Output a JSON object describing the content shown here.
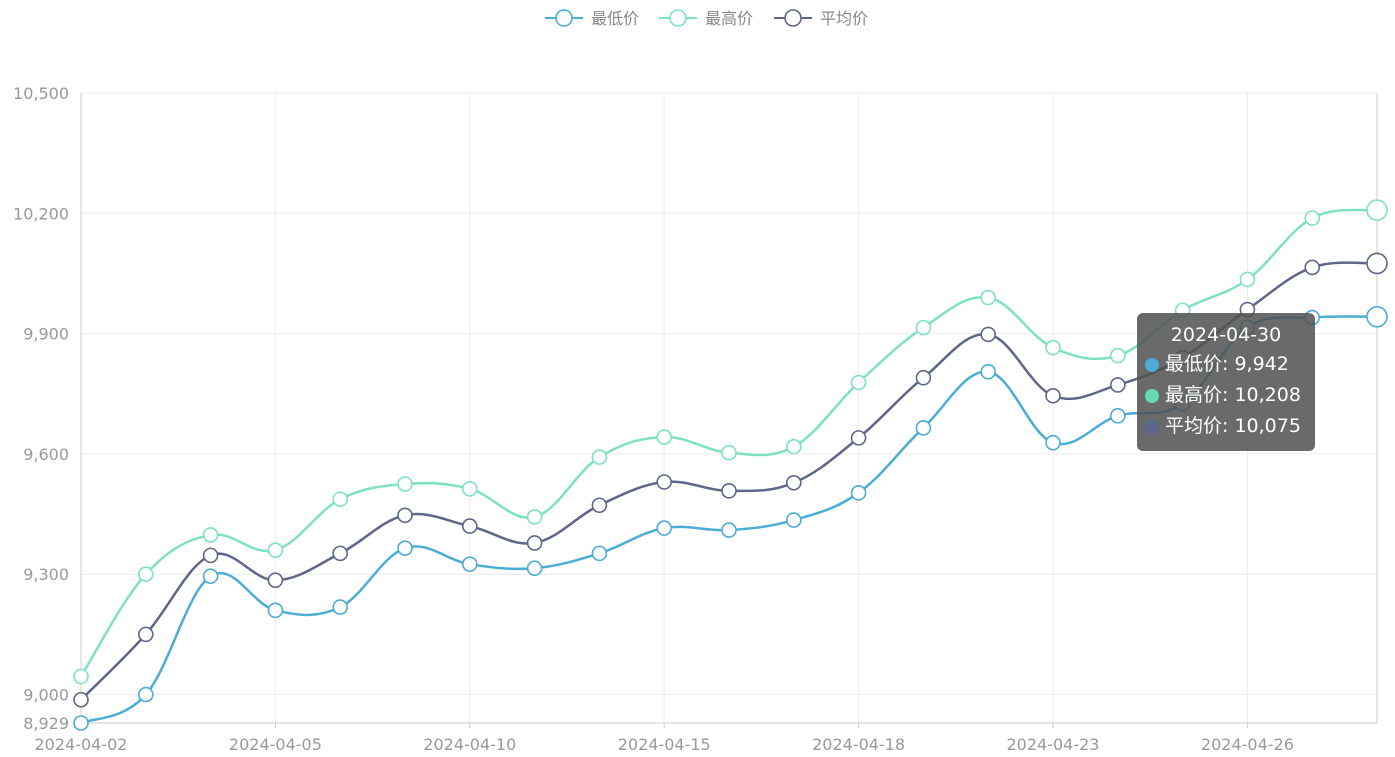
{
  "chart_data": {
    "type": "line",
    "smooth": true,
    "x": [
      "2024-04-02",
      "2024-04-03",
      "2024-04-04",
      "2024-04-05",
      "2024-04-08",
      "2024-04-09",
      "2024-04-10",
      "2024-04-11",
      "2024-04-12",
      "2024-04-15",
      "2024-04-16",
      "2024-04-17",
      "2024-04-18",
      "2024-04-19",
      "2024-04-22",
      "2024-04-23",
      "2024-04-24",
      "2024-04-25",
      "2024-04-26",
      "2024-04-29",
      "2024-04-30"
    ],
    "x_tick_labels": [
      "2024-04-02",
      "2024-04-05",
      "2024-04-10",
      "2024-04-15",
      "2024-04-18",
      "2024-04-23",
      "2024-04-26"
    ],
    "x_tick_indices": [
      0,
      3,
      6,
      9,
      12,
      15,
      18
    ],
    "series": [
      {
        "name": "最低价",
        "color": "#4bacd6",
        "values": [
          8929,
          9000,
          9295,
          9210,
          9218,
          9365,
          9325,
          9315,
          9352,
          9415,
          9410,
          9435,
          9503,
          9665,
          9805,
          9628,
          9695,
          9725,
          9915,
          9940,
          9942
        ]
      },
      {
        "name": "最高价",
        "color": "#7ee0c4",
        "values": [
          9045,
          9300,
          9398,
          9360,
          9487,
          9525,
          9513,
          9443,
          9592,
          9642,
          9603,
          9618,
          9778,
          9915,
          9990,
          9865,
          9845,
          9958,
          10035,
          10188,
          10208
        ]
      },
      {
        "name": "平均价",
        "color": "#5f6788",
        "values": [
          8987,
          9150,
          9347,
          9285,
          9352,
          9447,
          9420,
          9378,
          9472,
          9530,
          9508,
          9528,
          9640,
          9790,
          9898,
          9745,
          9772,
          9840,
          9960,
          10065,
          10075
        ]
      }
    ],
    "ylim": [
      8929,
      10500
    ],
    "y_ticks": [
      8929,
      9000,
      9300,
      9600,
      9900,
      10200,
      10500
    ],
    "y_tick_labels": [
      "8,929",
      "9,000",
      "9,300",
      "9,600",
      "9,900",
      "10,200",
      "10,500"
    ],
    "grid": true,
    "legend": "top-center",
    "title": "",
    "xlabel": "",
    "ylabel": ""
  },
  "tooltip": {
    "title": "2024-04-30",
    "rows": [
      {
        "label": "最低价: 9,942",
        "color": "#4bacd6"
      },
      {
        "label": "最高价: 10,208",
        "color": "#67d9b6"
      },
      {
        "label": "平均价: 10,075",
        "color": "#5a6690"
      }
    ]
  }
}
